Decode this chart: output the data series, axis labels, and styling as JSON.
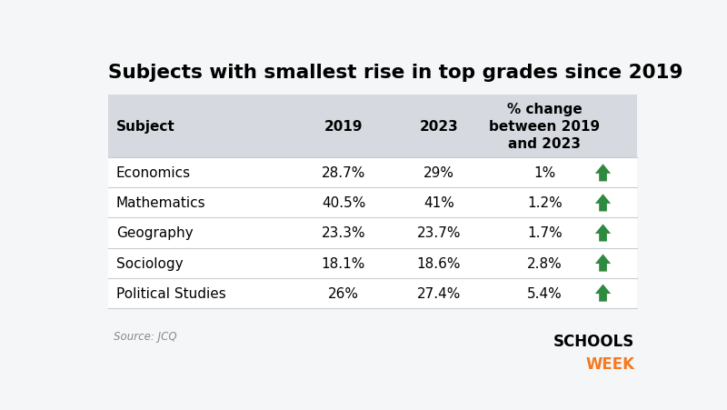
{
  "title": "Subjects with smallest rise in top grades since 2019",
  "source": "Source: JCQ",
  "header": [
    "Subject",
    "2019",
    "2023",
    "% change\nbetween 2019\nand 2023"
  ],
  "rows": [
    [
      "Economics",
      "28.7%",
      "29%",
      "1%"
    ],
    [
      "Mathematics",
      "40.5%",
      "41%",
      "1.2%"
    ],
    [
      "Geography",
      "23.3%",
      "23.7%",
      "1.7%"
    ],
    [
      "Sociology",
      "18.1%",
      "18.6%",
      "2.8%"
    ],
    [
      "Political Studies",
      "26%",
      "27.4%",
      "5.4%"
    ]
  ],
  "header_bg": "#d6dae0",
  "divider_color": "#c8cdd4",
  "header_text_color": "#000000",
  "row_text_color": "#000000",
  "arrow_color": "#2d8a3e",
  "title_color": "#000000",
  "source_color": "#888888",
  "schools_color": "#000000",
  "week_color": "#f47920",
  "col_aligns": [
    "left",
    "center",
    "center",
    "center"
  ],
  "background_color": "#f5f6f7"
}
